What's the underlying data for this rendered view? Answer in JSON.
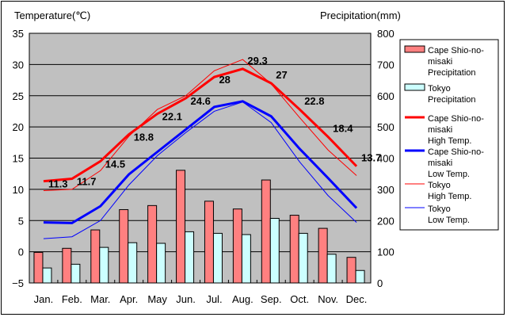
{
  "chart_data": {
    "type": "bar+line",
    "title": "",
    "categories": [
      "Jan.",
      "Feb.",
      "Mar.",
      "Apr.",
      "May",
      "Jun.",
      "Jul.",
      "Aug.",
      "Sep.",
      "Oct.",
      "Nov.",
      "Dec."
    ],
    "y_left": {
      "label": "Temperature(℃)",
      "range": [
        -5,
        35
      ],
      "ticks": [
        -5,
        0,
        5,
        10,
        15,
        20,
        25,
        30,
        35
      ]
    },
    "y_right": {
      "label": "Precipitation(mm)",
      "range": [
        0,
        800
      ],
      "ticks": [
        0,
        100,
        200,
        300,
        400,
        500,
        600,
        700,
        800
      ]
    },
    "grid": true,
    "legend_position": "right",
    "bar_series": [
      {
        "name": "Cape Shio-no-misaki Precipitation",
        "legend_lines": [
          "Cape Shio-no-",
          "misaki",
          " Precipitation"
        ],
        "color": "#ff8080",
        "values": [
          98,
          111,
          170,
          235,
          248,
          361,
          262,
          237,
          330,
          217,
          175,
          82
        ]
      },
      {
        "name": "Tokyo Precipitation",
        "legend_lines": [
          "Tokyo",
          " Precipitation"
        ],
        "color": "#ccffff",
        "values": [
          48,
          60,
          114,
          129,
          127,
          164,
          159,
          155,
          207,
          159,
          92,
          40
        ]
      }
    ],
    "line_series": [
      {
        "name": "Cape Shio-no-misaki High Temp.",
        "legend_lines": [
          "Cape Shio-no-",
          "misaki",
          " High Temp."
        ],
        "color": "#ff0000",
        "thick": true,
        "values": [
          11.3,
          11.7,
          14.5,
          18.8,
          22.1,
          24.6,
          28,
          29.3,
          27,
          22.8,
          18.4,
          13.7
        ],
        "labels": [
          "11.3",
          "11.7",
          "14.5",
          "18.8",
          "22.1",
          "24.6",
          "28",
          "29.3",
          "27",
          "22.8",
          "18.4",
          "13.7"
        ]
      },
      {
        "name": "Cape Shio-no-misaki Low Temp.",
        "legend_lines": [
          "Cape Shio-no-",
          "misaki",
          " Low Temp."
        ],
        "color": "#0000ff",
        "thick": true,
        "values": [
          4.7,
          4.6,
          7.3,
          12.4,
          16.0,
          19.6,
          23.2,
          24.1,
          21.7,
          16.5,
          11.8,
          7.0
        ]
      },
      {
        "name": "Tokyo High Temp.",
        "legend_lines": [
          "Tokyo",
          " High Temp."
        ],
        "color": "#ff0000",
        "thick": false,
        "values": [
          9.8,
          10.0,
          13.0,
          18.5,
          22.8,
          25.0,
          29.0,
          30.8,
          26.9,
          21.5,
          16.3,
          12.2
        ]
      },
      {
        "name": "Tokyo Low Temp.",
        "legend_lines": [
          "Tokyo",
          " Low Temp."
        ],
        "color": "#0000ff",
        "thick": false,
        "values": [
          2.1,
          2.4,
          5.0,
          10.7,
          15.4,
          19.1,
          22.5,
          24.0,
          20.7,
          14.4,
          9.0,
          4.7
        ]
      }
    ]
  }
}
